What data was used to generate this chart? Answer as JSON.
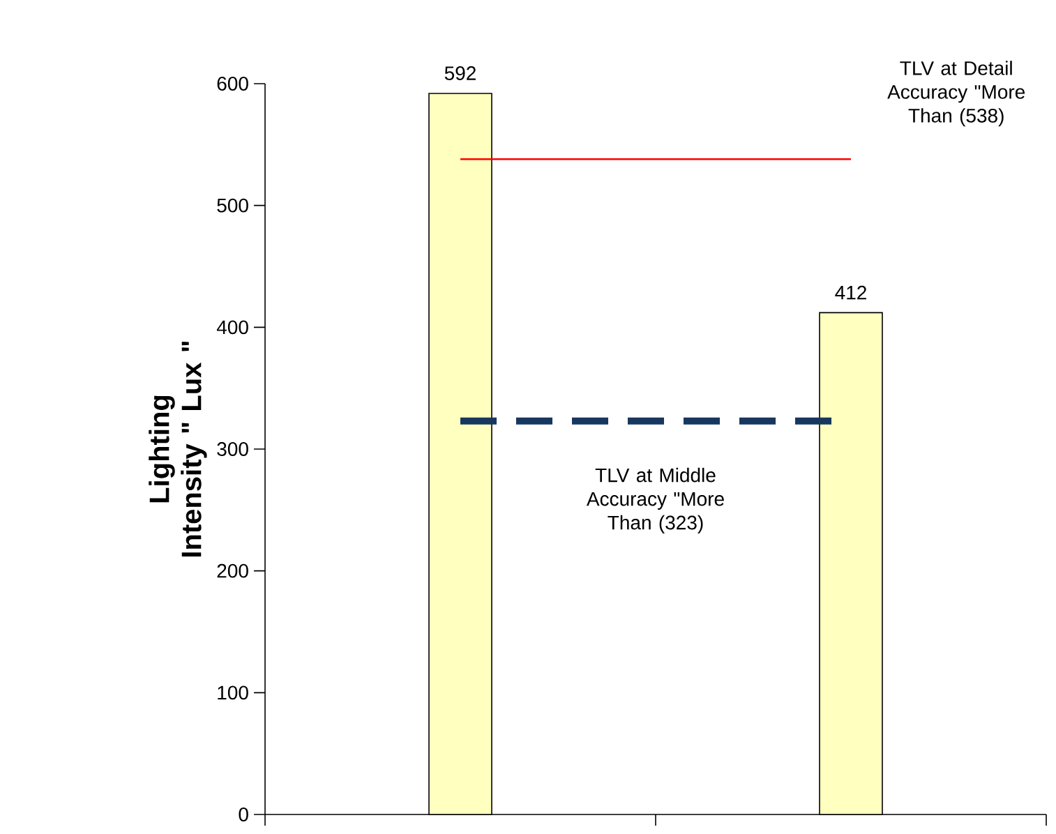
{
  "chart_data": {
    "type": "bar",
    "categories": [
      null,
      null
    ],
    "values": [
      592,
      412
    ],
    "color": "#ffffc0",
    "data_labels": true,
    "ylabel": "Lighting Intensity \" Lux \"",
    "ylim": [
      0,
      600
    ],
    "yticks": [
      0,
      100,
      200,
      300,
      400,
      500,
      600
    ],
    "grid": false,
    "ref_lines": [
      {
        "axis": "y",
        "value": 538,
        "label": "TLV at Detail Accuracy \"More Than (538)",
        "color": "#ff0000",
        "line_style": "solid"
      },
      {
        "axis": "y",
        "value": 323,
        "label": "TLV at Middle Accuracy \"More Than (323)",
        "color": "#17375e",
        "line_style": "dashed"
      }
    ]
  }
}
